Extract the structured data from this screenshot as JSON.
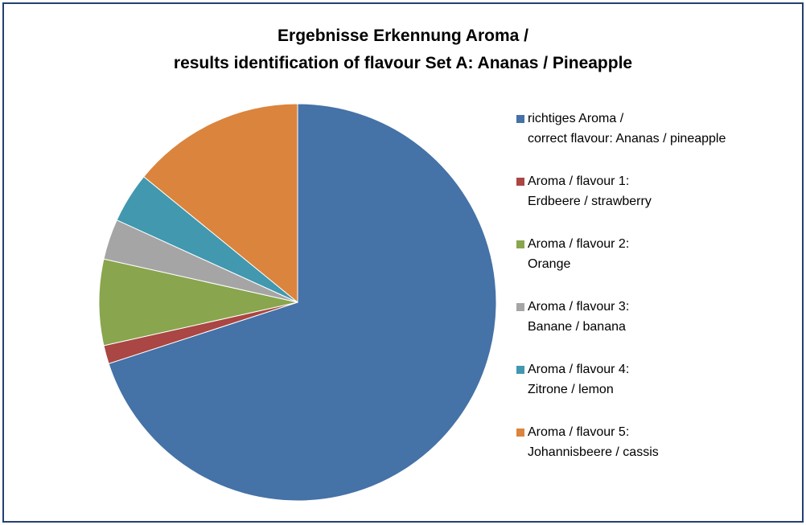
{
  "chart_data": {
    "type": "pie",
    "title": "Ergebnisse Erkennung Aroma /\nresults identification of flavour Set A: Ananas / Pineapple",
    "series": [
      {
        "name": "richtiges Aroma /\ncorrect flavour: Ananas / pineapple",
        "color": "#4572a7",
        "values": [
          70
        ]
      },
      {
        "name": "Aroma / flavour 1:\nErdbeere / strawberry",
        "color": "#aa4643",
        "values": [
          1.5
        ]
      },
      {
        "name": "Aroma / flavour 2:\nOrange",
        "color": "#89a54e",
        "values": [
          7
        ]
      },
      {
        "name": "Aroma / flavour 3:\nBanane / banana",
        "color": "#a5a5a5",
        "values": [
          3.3
        ]
      },
      {
        "name": "Aroma / flavour 4:\nZitrone / lemon",
        "color": "#4198af",
        "values": [
          4.1
        ]
      },
      {
        "name": "Aroma / flavour 5:\nJohannisbeere / cassis",
        "color": "#db843d",
        "values": [
          14.1
        ]
      }
    ],
    "legend": "right"
  }
}
